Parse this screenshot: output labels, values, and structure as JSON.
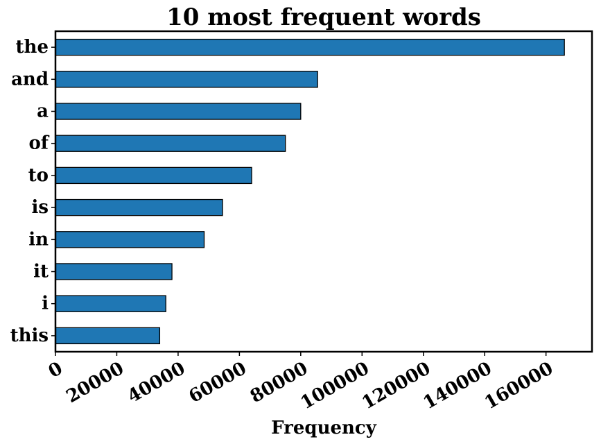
{
  "chart_data": {
    "type": "bar",
    "orientation": "horizontal",
    "title": "10 most frequent words",
    "xlabel": "Frequency",
    "ylabel": "",
    "categories": [
      "the",
      "and",
      "a",
      "of",
      "to",
      "is",
      "in",
      "it",
      "i",
      "this"
    ],
    "values": [
      166000,
      85500,
      80000,
      75000,
      64000,
      54500,
      48500,
      38000,
      36000,
      34000
    ],
    "xlim": [
      0,
      175000
    ],
    "xticks": [
      0,
      20000,
      40000,
      60000,
      80000,
      100000,
      120000,
      140000,
      160000
    ],
    "xtick_labels": [
      "0",
      "20000",
      "40000",
      "60000",
      "80000",
      "100000",
      "120000",
      "140000",
      "160000"
    ],
    "bar_color": "#1f77b4",
    "edge_color": "#000000",
    "grid": false,
    "legend": false
  }
}
